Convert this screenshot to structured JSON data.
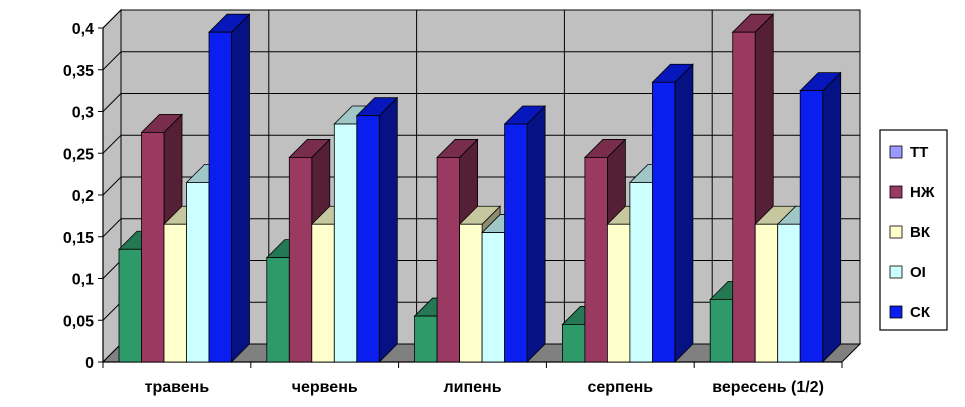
{
  "chart_data": {
    "type": "bar",
    "categories": [
      "травень",
      "червень",
      "липень",
      "серпень",
      "вересень (1/2)"
    ],
    "series": [
      {
        "name": "ТТ",
        "color": "#2e9a6a",
        "values": [
          0.135,
          0.125,
          0.055,
          0.045,
          0.075
        ]
      },
      {
        "name": "НЖ",
        "color": "#9a3a62",
        "values": [
          0.275,
          0.245,
          0.245,
          0.245,
          0.395
        ]
      },
      {
        "name": "ВК",
        "color": "#ffffcc",
        "values": [
          0.165,
          0.165,
          0.165,
          0.165,
          0.165
        ]
      },
      {
        "name": "ОІ",
        "color": "#ccffff",
        "values": [
          0.215,
          0.285,
          0.155,
          0.215,
          0.165
        ]
      },
      {
        "name": "СК",
        "color": "#0a1ef0",
        "values": [
          0.395,
          0.295,
          0.285,
          0.335,
          0.325
        ]
      }
    ],
    "legend_swatch_colors": [
      "#9999ff",
      "#9a3a62",
      "#ffffcc",
      "#ccffff",
      "#0a1ef0"
    ],
    "ylim": [
      0,
      0.4
    ],
    "yticks": [
      "0",
      "0,05",
      "0,1",
      "0,15",
      "0,2",
      "0,25",
      "0,3",
      "0,35",
      "0,4"
    ],
    "grid": true,
    "legend_position": "right",
    "wall_color": "#c0c0c0",
    "floor_color": "#808080",
    "title": "",
    "xlabel": "",
    "ylabel": ""
  }
}
